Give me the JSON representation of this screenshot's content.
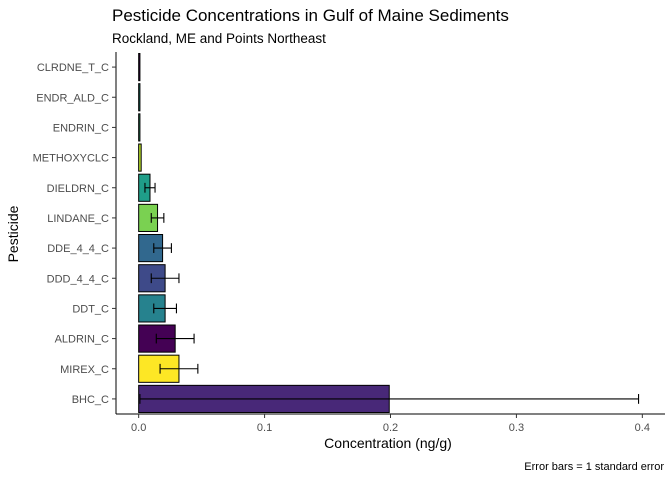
{
  "chart_data": {
    "type": "bar",
    "orientation": "horizontal",
    "title": "Pesticide Concentrations in Gulf of Maine Sediments",
    "subtitle": "Rockland, ME and Points Northeast",
    "xlabel": "Concentration (ng/g)",
    "ylabel": "Pesticide",
    "caption": "Error bars = 1 standard error",
    "xlim": [
      -0.018,
      0.418
    ],
    "xticks": [
      0.0,
      0.1,
      0.2,
      0.3,
      0.4
    ],
    "xtick_labels": [
      "0.0",
      "0.1",
      "0.2",
      "0.3",
      "0.4"
    ],
    "grid": false,
    "legend": "none",
    "categories": [
      "CLRDNE_T_C",
      "ENDR_ALD_C",
      "ENDRIN_C",
      "METHOXYCLC",
      "DIELDRN_C",
      "LINDANE_C",
      "DDE_4_4_C",
      "DDD_4_4_C",
      "DDT_C",
      "ALDRIN_C",
      "MIREX_C",
      "BHC_C"
    ],
    "values": [
      0.001,
      0.001,
      0.001,
      0.002,
      0.009,
      0.015,
      0.019,
      0.021,
      0.021,
      0.029,
      0.032,
      0.199
    ],
    "error": [
      0.0,
      0.0,
      0.0,
      0.0,
      0.004,
      0.005,
      0.007,
      0.011,
      0.009,
      0.015,
      0.015,
      0.198
    ],
    "colors": [
      "#440154",
      "#1f9e89",
      "#35b779",
      "#b8de29",
      "#1f9e89",
      "#7ad151",
      "#31688e",
      "#3e4a89",
      "#26828e",
      "#440154",
      "#fde725",
      "#482878"
    ]
  }
}
